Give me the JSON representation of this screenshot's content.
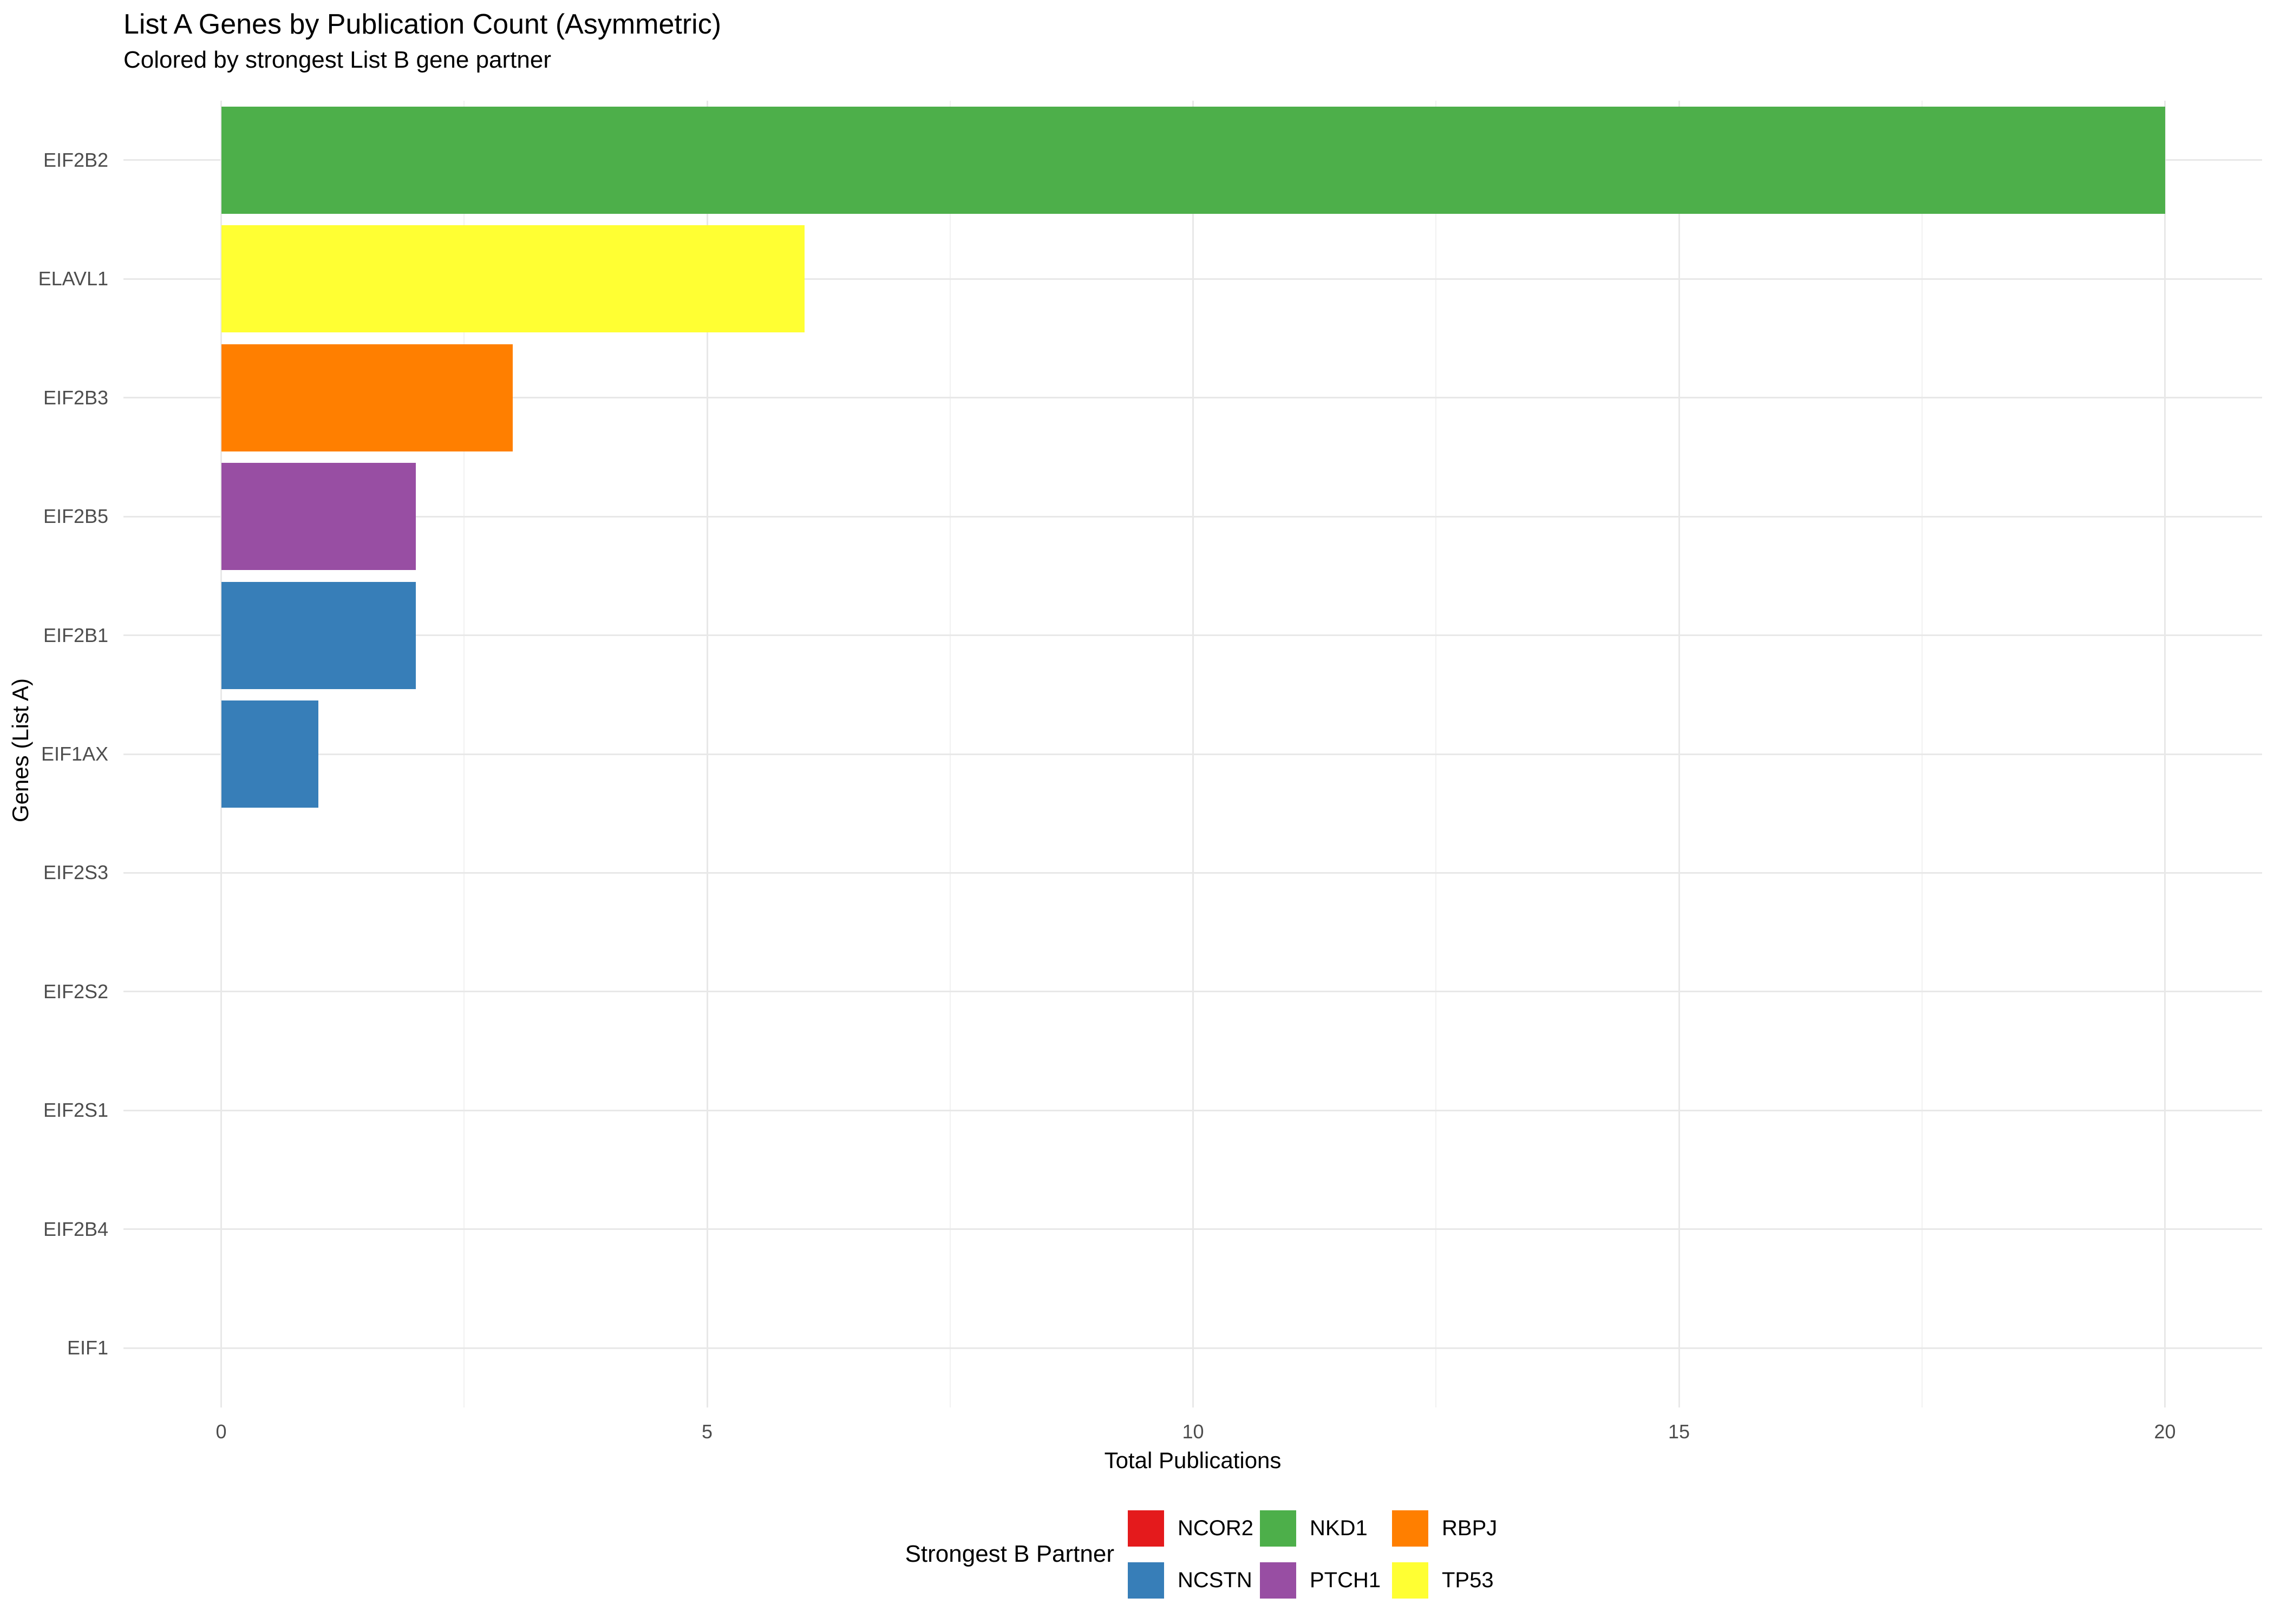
{
  "chart_data": {
    "type": "bar",
    "orientation": "horizontal",
    "title": "List A Genes by Publication Count (Asymmetric)",
    "subtitle": "Colored by strongest List B gene partner",
    "xlabel": "Total Publications",
    "ylabel": "Genes (List A)",
    "xlim": [
      0,
      20
    ],
    "x_major_ticks": [
      "0",
      "5",
      "10",
      "15",
      "20"
    ],
    "x_major_values": [
      0,
      5,
      10,
      15,
      20
    ],
    "x_minor_values": [
      2.5,
      7.5,
      12.5,
      17.5
    ],
    "categories": [
      "EIF2B2",
      "ELAVL1",
      "EIF2B3",
      "EIF2B5",
      "EIF2B1",
      "EIF1AX",
      "EIF2S3",
      "EIF2S2",
      "EIF2S1",
      "EIF2B4",
      "EIF1"
    ],
    "values": [
      20,
      6,
      3,
      2,
      2,
      1,
      0,
      0,
      0,
      0,
      0
    ],
    "partners": [
      "NKD1",
      "TP53",
      "RBPJ",
      "PTCH1",
      "NCSTN",
      "NCSTN",
      "",
      "",
      "",
      "",
      ""
    ],
    "palette": {
      "NCOR2": "#E41A1C",
      "NCSTN": "#377EB8",
      "NKD1": "#4DAF4A",
      "PTCH1": "#984EA3",
      "RBPJ": "#FF7F00",
      "TP53": "#FFFF33"
    },
    "legend": {
      "title": "Strongest B Partner",
      "position": "bottom",
      "entries": [
        {
          "label": "NCOR2",
          "color": "#E41A1C"
        },
        {
          "label": "NCSTN",
          "color": "#377EB8"
        },
        {
          "label": "NKD1",
          "color": "#4DAF4A"
        },
        {
          "label": "PTCH1",
          "color": "#984EA3"
        },
        {
          "label": "RBPJ",
          "color": "#FF7F00"
        },
        {
          "label": "TP53",
          "color": "#FFFF33"
        }
      ]
    },
    "grid": {
      "major_color": "#E8E8E8",
      "minor_color": "#F1F1F1",
      "background": "#FFFFFF"
    },
    "text_colors": {
      "axis_text": "#4D4D4D",
      "axis_title": "#000000",
      "title": "#000000"
    }
  }
}
